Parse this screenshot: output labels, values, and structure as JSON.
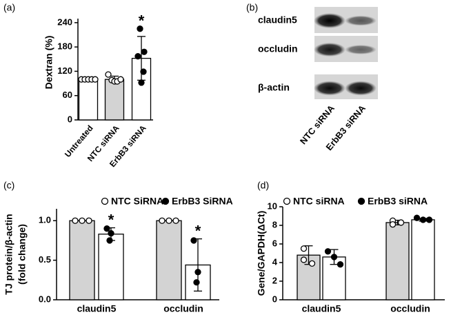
{
  "chart_data": [
    {
      "type": "bar",
      "panel_label": "(a)",
      "ylabel": "Dextran (%)",
      "categories": [
        "Untreated",
        "NTC siRNA",
        "ErbB3 siRNA"
      ],
      "values": [
        100,
        100,
        152
      ],
      "errors": [
        0,
        8,
        54
      ],
      "colors": [
        "#ffffff",
        "#d3d3d3",
        "#ffffff"
      ],
      "marker": [
        "open",
        "open",
        "filled"
      ],
      "points": [
        [
          100,
          100,
          100,
          100,
          100
        ],
        [
          112,
          98,
          95,
          95,
          100
        ],
        [
          225,
          168,
          157,
          119,
          92
        ]
      ],
      "ylim": [
        0,
        250
      ],
      "yticks": [
        0,
        60,
        120,
        180,
        240
      ],
      "annotations": [
        {
          "text": "*",
          "category": 2
        }
      ]
    },
    {
      "type": "grouped_bar",
      "panel_label": "(c)",
      "ylabel": [
        "TJ protein/β-actin",
        "(fold change)"
      ],
      "categories": [
        "claudin5",
        "occludin"
      ],
      "series": [
        {
          "name": "NTC SiRNA",
          "color": "#d3d3d3",
          "marker": "open",
          "values": [
            1.0,
            1.0
          ],
          "errors": [
            0,
            0
          ],
          "points": [
            [
              1,
              1,
              1
            ],
            [
              1,
              1,
              1
            ]
          ]
        },
        {
          "name": "ErbB3 SiRNA",
          "color": "#ffffff",
          "marker": "filled",
          "values": [
            0.83,
            0.44
          ],
          "errors": [
            0.08,
            0.33
          ],
          "points": [
            [
              0.9,
              0.84,
              0.75
            ],
            [
              0.75,
              0.35,
              0.22
            ]
          ]
        }
      ],
      "ylim": [
        0,
        1.15
      ],
      "yticks": [
        {
          "value": 0,
          "label": "0.0"
        },
        {
          "value": 0.5,
          "label": "0.5"
        },
        {
          "value": 1,
          "label": "1.0"
        }
      ],
      "annotations": [
        {
          "text": "*",
          "series": 1,
          "category": 0
        },
        {
          "text": "*",
          "series": 1,
          "category": 1
        }
      ]
    },
    {
      "type": "grouped_bar",
      "panel_label": "(d)",
      "ylabel": [
        "Gene/GAPDH(ΔCt)"
      ],
      "categories": [
        "claudin5",
        "occludin"
      ],
      "series": [
        {
          "name": "NTC siRNA",
          "color": "#d3d3d3",
          "marker": "open",
          "values": [
            4.8,
            8.3
          ],
          "errors": [
            1.0,
            0.25
          ],
          "points": [
            [
              5.5,
              4.3,
              3.9
            ],
            [
              8.5,
              8.1,
              8.3
            ]
          ]
        },
        {
          "name": "ErbB3 siRNA",
          "color": "#ffffff",
          "marker": "filled",
          "values": [
            4.6,
            8.6
          ],
          "errors": [
            0.8,
            0.15
          ],
          "points": [
            [
              5.2,
              4.6,
              3.8
            ],
            [
              8.8,
              8.6,
              8.6
            ]
          ]
        }
      ],
      "ylim": [
        0,
        10
      ],
      "yticks": [
        0,
        2,
        4,
        6,
        8,
        10
      ],
      "annotations": []
    }
  ],
  "blot": {
    "panel_label": "(b)",
    "rows": [
      "claudin5",
      "occludin",
      "β-actin"
    ],
    "lanes": [
      "NTC siRNA",
      "ErbB3 siRNA"
    ]
  }
}
